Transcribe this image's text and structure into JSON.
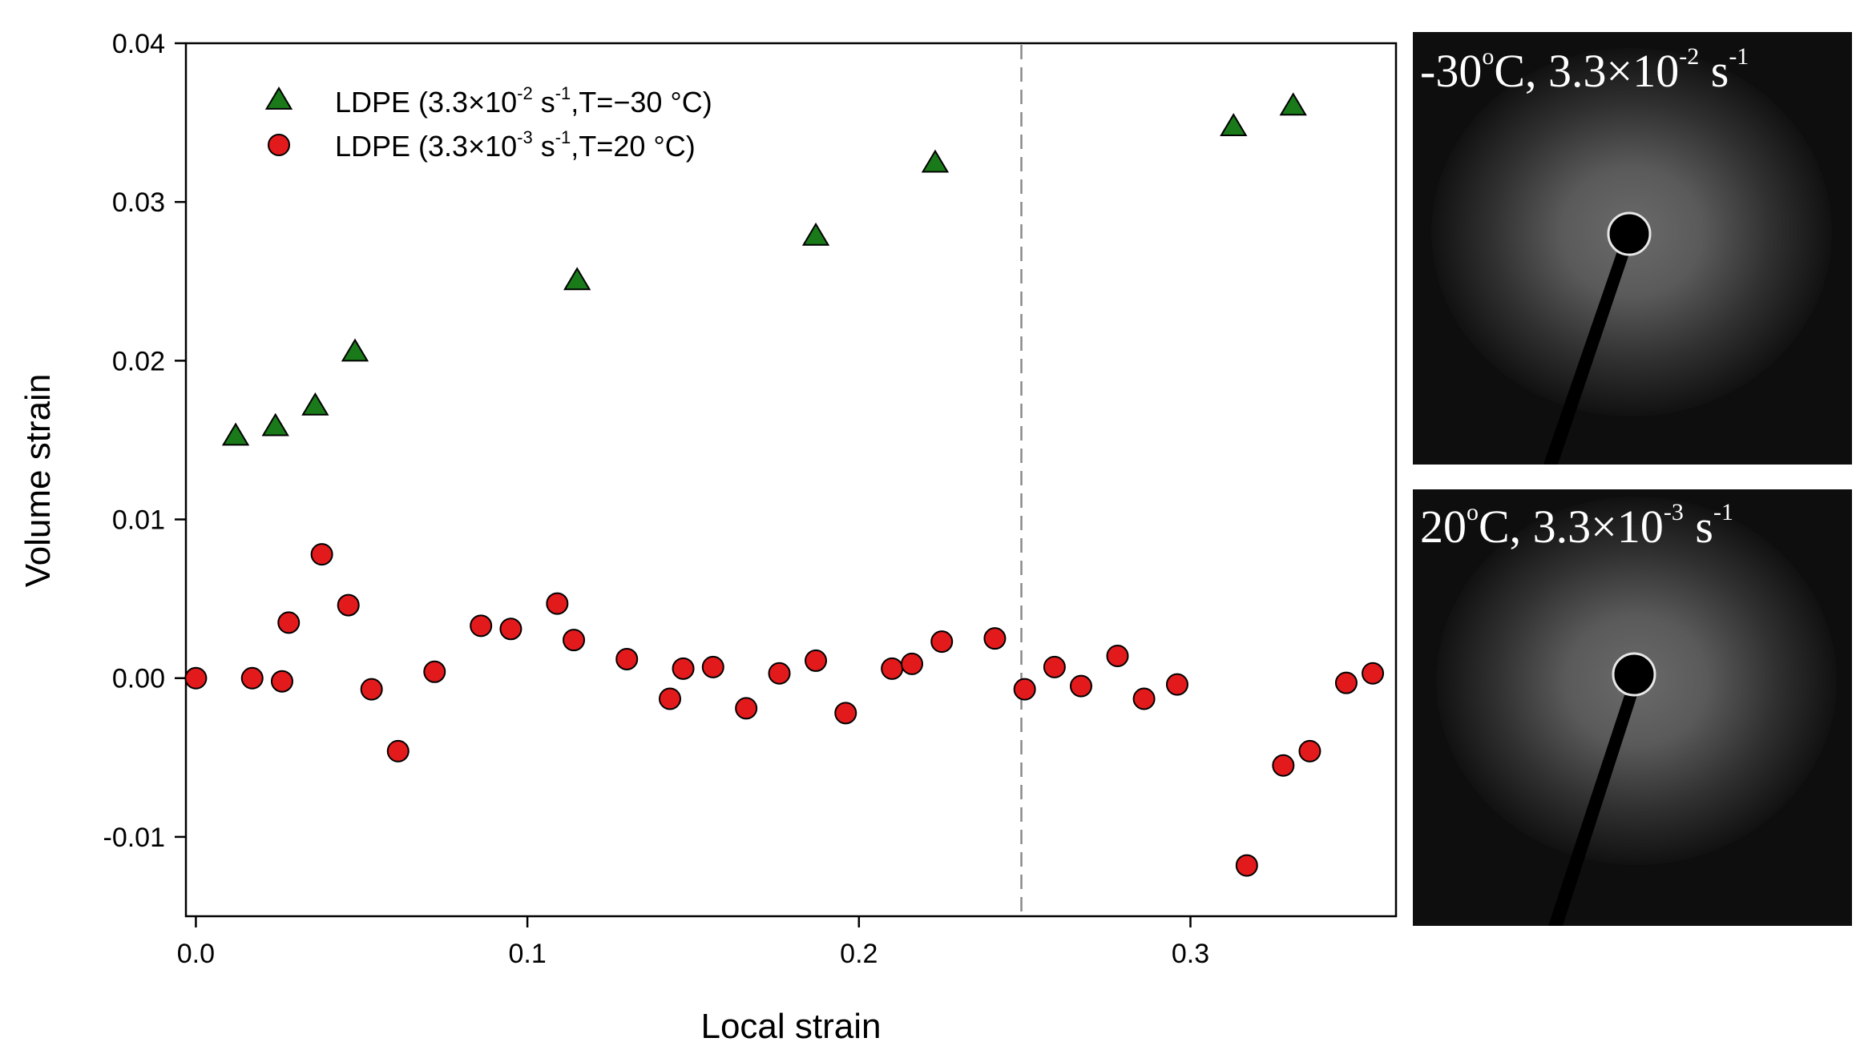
{
  "chart_data": {
    "type": "scatter",
    "title": "",
    "xlabel": "Local strain",
    "ylabel": "Volume strain",
    "xlim": [
      -0.003,
      0.362
    ],
    "ylim": [
      -0.015,
      0.04
    ],
    "xticks": [
      0.0,
      0.1,
      0.2,
      0.3
    ],
    "xtick_labels": [
      "0.0",
      "0.1",
      "0.2",
      "0.3"
    ],
    "yticks": [
      -0.01,
      0.0,
      0.01,
      0.02,
      0.03,
      0.04
    ],
    "ytick_labels": [
      "-0.01",
      "0.00",
      "0.01",
      "0.02",
      "0.03",
      "0.04"
    ],
    "grid": false,
    "legend_position": "top-left",
    "reference_line": {
      "x": 0.249,
      "style": "dashed",
      "color": "#8a8a8a"
    },
    "series": [
      {
        "name": "LDPE (3.3×10-2 s-1,T=−30 °C)",
        "legend": {
          "prefix": "LDPE (3.3×10",
          "exp1": "-2",
          "mid": " s",
          "exp2": "-1",
          "suffix": ",T=−30 °C)"
        },
        "marker": "triangle",
        "color": "#1a7a1a",
        "points": [
          [
            0.012,
            0.0153
          ],
          [
            0.024,
            0.0159
          ],
          [
            0.036,
            0.0172
          ],
          [
            0.048,
            0.0206
          ],
          [
            0.115,
            0.0251
          ],
          [
            0.187,
            0.0279
          ],
          [
            0.223,
            0.0325
          ],
          [
            0.313,
            0.0348
          ],
          [
            0.331,
            0.0361
          ]
        ]
      },
      {
        "name": "LDPE (3.3×10-3 s-1,T=20 °C)",
        "legend": {
          "prefix": "LDPE (3.3×10",
          "exp1": "-3",
          "mid": " s",
          "exp2": "-1",
          "suffix": ",T=20 °C)"
        },
        "marker": "circle",
        "color": "#e31a1c",
        "points": [
          [
            0.0,
            0.0
          ],
          [
            0.017,
            0.0
          ],
          [
            0.026,
            -0.0002
          ],
          [
            0.028,
            0.0035
          ],
          [
            0.038,
            0.0078
          ],
          [
            0.046,
            0.0046
          ],
          [
            0.053,
            -0.0007
          ],
          [
            0.061,
            -0.0046
          ],
          [
            0.072,
            0.0004
          ],
          [
            0.086,
            0.0033
          ],
          [
            0.095,
            0.0031
          ],
          [
            0.109,
            0.0047
          ],
          [
            0.114,
            0.0024
          ],
          [
            0.13,
            0.0012
          ],
          [
            0.143,
            -0.0013
          ],
          [
            0.147,
            0.0006
          ],
          [
            0.156,
            0.0007
          ],
          [
            0.166,
            -0.0019
          ],
          [
            0.176,
            0.0003
          ],
          [
            0.187,
            0.0011
          ],
          [
            0.196,
            -0.0022
          ],
          [
            0.21,
            0.0006
          ],
          [
            0.216,
            0.0009
          ],
          [
            0.225,
            0.0023
          ],
          [
            0.241,
            0.0025
          ],
          [
            0.25,
            -0.0007
          ],
          [
            0.259,
            0.0007
          ],
          [
            0.267,
            -0.0005
          ],
          [
            0.278,
            0.0014
          ],
          [
            0.286,
            -0.0013
          ],
          [
            0.296,
            -0.0004
          ],
          [
            0.317,
            -0.0118
          ],
          [
            0.328,
            -0.0055
          ],
          [
            0.336,
            -0.0046
          ],
          [
            0.347,
            -0.0003
          ],
          [
            0.355,
            0.0003
          ]
        ]
      }
    ]
  },
  "panels": [
    {
      "main": "-30",
      "deg": "o",
      "unit": "C, 3.3×10",
      "exp1": "-2",
      "s": " s",
      "exp2": "-1"
    },
    {
      "main": "20",
      "deg": "o",
      "unit": "C, 3.3×10",
      "exp1": "-3",
      "s": " s",
      "exp2": "-1"
    }
  ]
}
